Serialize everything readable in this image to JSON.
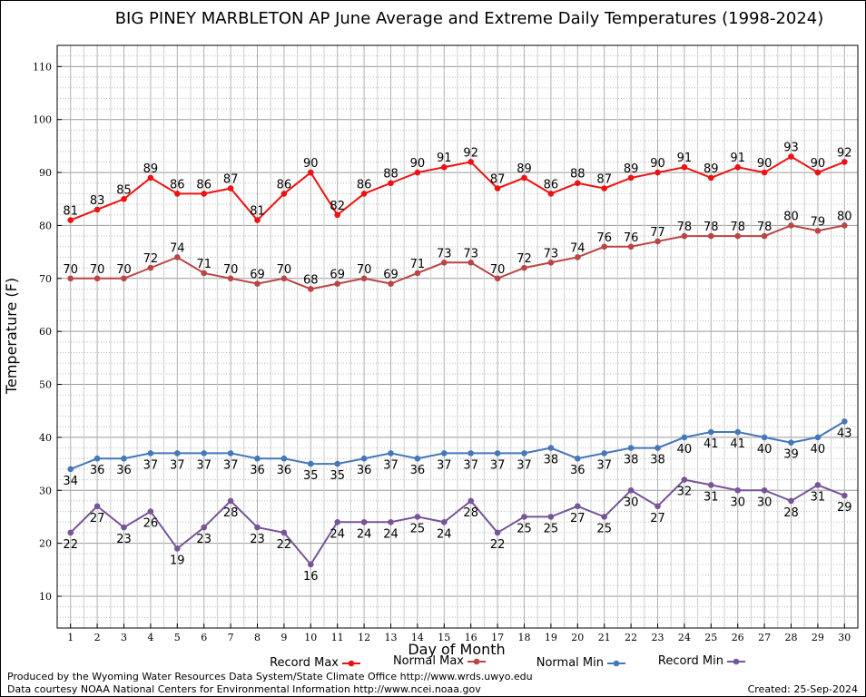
{
  "chart_data": {
    "type": "line",
    "title": "BIG PINEY MARBLETON AP June Average and Extreme Daily Temperatures (1998-2024)",
    "xlabel": "Day of Month",
    "ylabel": "Temperature (F)",
    "xlim": [
      0.5,
      30.5
    ],
    "ylim": [
      4,
      114
    ],
    "yticks": [
      10,
      20,
      30,
      40,
      50,
      60,
      70,
      80,
      90,
      100,
      110
    ],
    "grid": true,
    "legend_position": "bottom",
    "x": [
      1,
      2,
      3,
      4,
      5,
      6,
      7,
      8,
      9,
      10,
      11,
      12,
      13,
      14,
      15,
      16,
      17,
      18,
      19,
      20,
      21,
      22,
      23,
      24,
      25,
      26,
      27,
      28,
      29,
      30
    ],
    "series": [
      {
        "name": "Record Max",
        "color": "#ee1111",
        "label_pos": "above",
        "values": [
          81,
          83,
          85,
          89,
          86,
          86,
          87,
          81,
          86,
          90,
          82,
          86,
          88,
          90,
          91,
          92,
          87,
          89,
          86,
          88,
          87,
          89,
          90,
          91,
          89,
          91,
          90,
          93,
          90,
          92
        ]
      },
      {
        "name": "Normal Max",
        "color": "#bb4444",
        "label_pos": "above",
        "values": [
          70,
          70,
          70,
          72,
          74,
          71,
          70,
          69,
          70,
          68,
          69,
          70,
          69,
          71,
          73,
          73,
          70,
          72,
          73,
          74,
          76,
          76,
          77,
          78,
          78,
          78,
          78,
          80,
          79,
          80
        ]
      },
      {
        "name": "Normal Min",
        "color": "#4477bb",
        "label_pos": "below",
        "values": [
          34,
          36,
          36,
          37,
          37,
          37,
          37,
          36,
          36,
          35,
          35,
          36,
          37,
          36,
          37,
          37,
          37,
          37,
          38,
          36,
          37,
          38,
          38,
          40,
          41,
          41,
          40,
          39,
          40,
          43
        ]
      },
      {
        "name": "Record Min",
        "color": "#775599",
        "label_pos": "below",
        "values": [
          22,
          27,
          23,
          26,
          19,
          23,
          28,
          23,
          22,
          16,
          24,
          24,
          24,
          25,
          24,
          28,
          22,
          25,
          25,
          27,
          25,
          30,
          27,
          32,
          31,
          30,
          30,
          28,
          31,
          29
        ]
      }
    ]
  },
  "footer": {
    "produced_by": "Produced by the Wyoming Water Resources Data System/State Climate Office http://www.wrds.uwyo.edu",
    "courtesy": "Data courtesy NOAA National Centers for Environmental Information http://www.ncei.noaa.gov",
    "created": "Created: 25-Sep-2024"
  }
}
